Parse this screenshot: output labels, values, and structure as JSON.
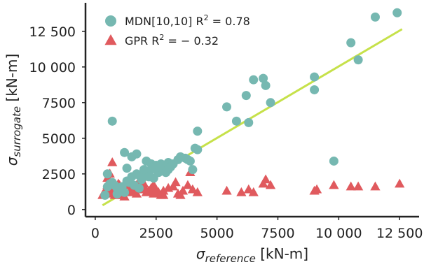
{
  "chart_data": {
    "type": "scatter",
    "title": "",
    "xlabel_main": "σ",
    "xlabel_sub": "reference",
    "xlabel_unit": " [kN-m]",
    "ylabel_main": "σ",
    "ylabel_sub": "surrogate",
    "ylabel_unit": " [kN-m]",
    "xlim": [
      -400,
      13300
    ],
    "ylim": [
      -500,
      14500
    ],
    "xticks": [
      0,
      2500,
      5000,
      7500,
      10000,
      12500
    ],
    "xtick_labels": [
      "0",
      "2500",
      "5000",
      "7500",
      "10 000",
      "12 500"
    ],
    "yticks": [
      0,
      2500,
      5000,
      7500,
      10000,
      12500
    ],
    "ytick_labels": [
      "0",
      "2500",
      "5000",
      "7500",
      "10 000",
      "12 500"
    ],
    "grid": false,
    "legend_position": "top-left",
    "legend": [
      {
        "label": "MDN[10,10] R",
        "sup": "2",
        "value": " = 0.78",
        "marker": "circle",
        "color": "#76b8b1"
      },
      {
        "label": "GPR R",
        "sup": "2",
        "value": " = − 0.32",
        "marker": "triangle",
        "color": "#e05a5e"
      }
    ],
    "fit_line": {
      "x": [
        300,
        12600
      ],
      "y": [
        300,
        12650
      ],
      "color": "#c6e14a"
    },
    "series": [
      {
        "name": "MDN[10,10]",
        "marker": "circle",
        "color": "#76b8b1",
        "x": [
          400,
          500,
          600,
          700,
          800,
          900,
          1000,
          1100,
          1200,
          1300,
          1400,
          1500,
          1600,
          1700,
          1800,
          1900,
          2000,
          2100,
          2200,
          2300,
          2400,
          2500,
          2600,
          2700,
          2800,
          2900,
          3000,
          3100,
          3200,
          3400,
          3500,
          3700,
          3800,
          3900,
          4000,
          4100,
          4200,
          700,
          1100,
          1300,
          1500,
          1700,
          1900,
          2000,
          2300,
          2500,
          2800,
          3000,
          4200,
          500,
          900,
          1200,
          1800,
          2200,
          2600,
          2900,
          5400,
          5800,
          6200,
          6300,
          6500,
          6900,
          7000,
          7200,
          9000,
          9000,
          9800,
          10500,
          10800,
          11500,
          12400
        ],
        "y": [
          1000,
          2500,
          1800,
          6200,
          1700,
          1100,
          1300,
          1400,
          4000,
          2900,
          1900,
          3700,
          1700,
          3900,
          2400,
          2100,
          2700,
          3400,
          2700,
          3200,
          2200,
          3000,
          2600,
          3200,
          3100,
          2900,
          3300,
          3000,
          3200,
          3500,
          3700,
          3600,
          3500,
          3400,
          2800,
          4300,
          5500,
          1900,
          1600,
          2000,
          2300,
          2500,
          2200,
          2800,
          2800,
          3100,
          2700,
          2800,
          4200,
          1600,
          1500,
          1200,
          1500,
          2300,
          3000,
          2600,
          7200,
          6200,
          8000,
          6100,
          9100,
          9200,
          8700,
          7500,
          9300,
          8400,
          3400,
          11700,
          10500,
          13500,
          13800
        ]
      },
      {
        "name": "GPR",
        "marker": "triangle",
        "color": "#e05a5e",
        "x": [
          300,
          400,
          500,
          550,
          600,
          650,
          700,
          750,
          800,
          850,
          900,
          950,
          1000,
          1050,
          1100,
          1150,
          1200,
          1300,
          1400,
          1500,
          1600,
          1700,
          1800,
          1900,
          2000,
          2100,
          2200,
          2300,
          2400,
          2500,
          2600,
          2700,
          2800,
          3000,
          3200,
          3400,
          3600,
          3800,
          4000,
          4200,
          500,
          700,
          900,
          1200,
          1600,
          2000,
          2400,
          2800,
          3300,
          3900,
          5400,
          6000,
          6300,
          6500,
          6900,
          7000,
          7200,
          9000,
          9100,
          9800,
          10500,
          10800,
          11500,
          12500,
          600,
          1000,
          1800,
          3500
        ],
        "y": [
          1000,
          1300,
          1700,
          1500,
          2000,
          1200,
          1100,
          1300,
          1000,
          1500,
          1200,
          1800,
          1100,
          1300,
          1500,
          1000,
          1400,
          1700,
          1200,
          1500,
          1300,
          1100,
          1800,
          1400,
          1600,
          1200,
          1300,
          1500,
          1100,
          1400,
          1200,
          1000,
          1300,
          1500,
          1600,
          1100,
          1300,
          1700,
          1400,
          1200,
          2200,
          3300,
          1000,
          900,
          1600,
          1800,
          1700,
          1000,
          1900,
          2600,
          1300,
          1200,
          1400,
          1200,
          1800,
          2100,
          1700,
          1300,
          1400,
          1700,
          1600,
          1600,
          1600,
          1800,
          2500,
          1700,
          2000,
          1000
        ]
      }
    ]
  }
}
